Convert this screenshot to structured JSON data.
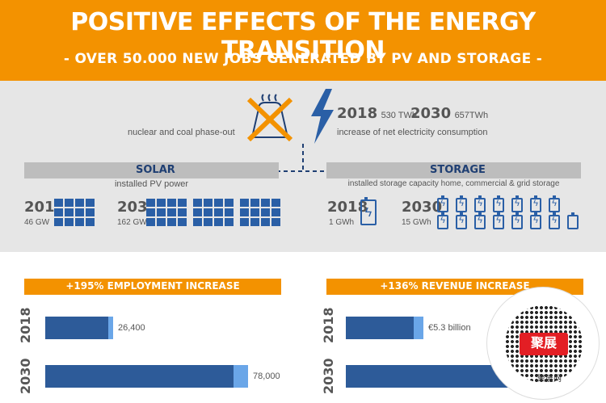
{
  "header": {
    "title": "POSITIVE EFFECTS OF THE ENERGY TRANSITION",
    "subtitle": "- OVER 50.000 NEW JOBS GENERATED BY PV AND STORAGE -"
  },
  "top_info": {
    "phaseout_label": "nuclear and coal phase-out",
    "consumption": {
      "y2018": "2018",
      "v2018": "530 TWh",
      "y2030": "2030",
      "v2030": "657TWh",
      "label": "increase of net electricity consumption"
    }
  },
  "solar": {
    "title": "SOLAR",
    "sub": "installed PV power",
    "y2018": "2018",
    "v2018": "46 GW",
    "y2030": "2030",
    "v2030": "162 GW"
  },
  "storage": {
    "title": "STORAGE",
    "sub": "installed storage capacity home, commercial & grid storage",
    "y2018": "2018",
    "v2018": "1 GWh",
    "y2030": "2030",
    "v2030": "15 GWh"
  },
  "employment": {
    "title": "+195% EMPLOYMENT INCREASE",
    "rows": [
      {
        "year": "2018",
        "value": "26,400"
      },
      {
        "year": "2030",
        "value": "78,000"
      }
    ]
  },
  "revenue": {
    "title": "+136% REVENUE INCREASE",
    "rows": [
      {
        "year": "2018",
        "value": "€5.3 billion"
      },
      {
        "year": "2030",
        "value": ""
      }
    ]
  },
  "qr": {
    "logo_text": "聚展",
    "caption": "聚展网"
  },
  "colors": {
    "orange": "#f39200",
    "navy": "#2d5b99",
    "blue": "#2a5fa6",
    "light_blue": "#6aa6e8"
  }
}
